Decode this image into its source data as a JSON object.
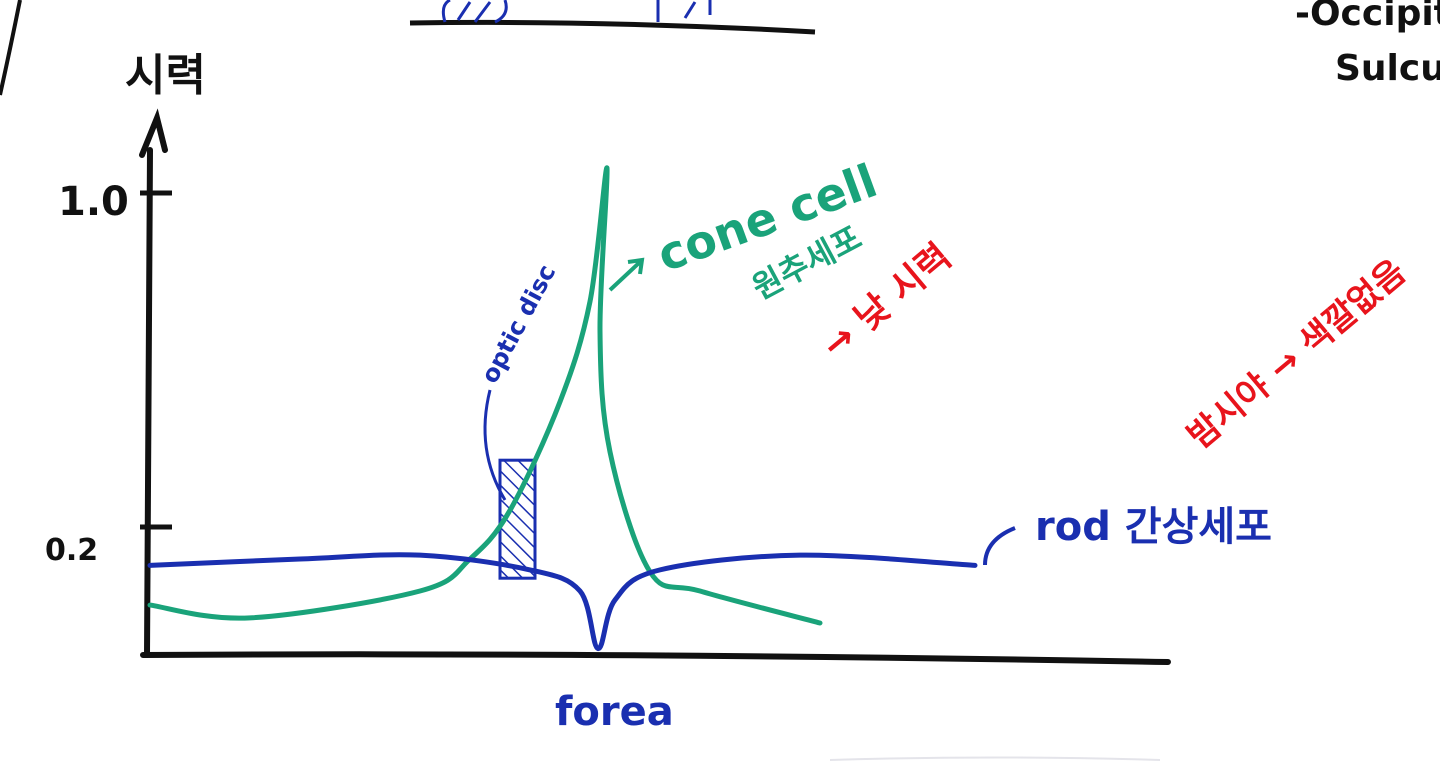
{
  "chart_data": {
    "type": "line",
    "title": "",
    "ylabel": "시력",
    "xlabel": "forea",
    "yticks": [
      1.0,
      0.2
    ],
    "ytick_labels": [
      "1.0",
      "0.2"
    ],
    "ylim": [
      0,
      1.1
    ],
    "grid": false,
    "series": [
      {
        "name": "cone cell",
        "color": "#1aa37a",
        "x": [
          -45,
          -35,
          -18,
          -13,
          -9,
          -4,
          -1,
          0.7,
          0,
          1,
          5,
          10,
          22
        ],
        "y": [
          0.078,
          0.058,
          0.1,
          0.15,
          0.24,
          0.5,
          0.74,
          1.06,
          0.67,
          0.38,
          0.13,
          0.1,
          0.05
        ]
      },
      {
        "name": "rod",
        "color": "#1a2fb0",
        "x": [
          -45,
          -30,
          -18,
          -7,
          -2,
          -0.2,
          1.5,
          6,
          20,
          37.5
        ],
        "y": [
          0.14,
          0.15,
          0.156,
          0.133,
          0.1,
          0.01,
          0.086,
          0.133,
          0.156,
          0.14
        ]
      }
    ],
    "bands": [
      {
        "label": "optic disc",
        "x": [
          -10,
          -6.5
        ],
        "y": [
          0.12,
          0.36
        ]
      }
    ],
    "annotations": {
      "cone_label": "cone cell",
      "cone_korean": "원추세포",
      "cone_note": "→ 낮 시력",
      "rod_label": "rod 간상세포",
      "rod_note": "밤시야 → 색깔없음",
      "optic_disc": "optic disc"
    }
  },
  "margin_text": {
    "top_right_1": "-Occipit",
    "top_right_2": "Sulcus"
  },
  "colors": {
    "axis": "#111111",
    "cone": "#1aa37a",
    "rod": "#1a2fb0",
    "note": "#e8141c"
  }
}
